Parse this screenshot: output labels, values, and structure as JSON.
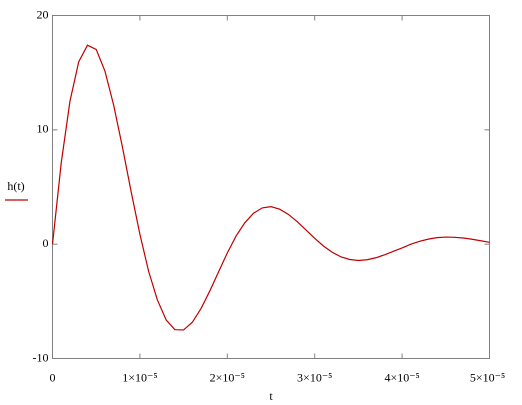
{
  "chart_data": {
    "type": "line",
    "x_label": "t",
    "x": [
      0,
      1e-06,
      2e-06,
      3e-06,
      4e-06,
      5e-06,
      6e-06,
      7e-06,
      8e-06,
      9e-06,
      1e-05,
      1.1e-05,
      1.2e-05,
      1.3e-05,
      1.4e-05,
      1.5e-05,
      1.6e-05,
      1.7e-05,
      1.8e-05,
      1.9e-05,
      2e-05,
      2.1e-05,
      2.2e-05,
      2.3e-05,
      2.4e-05,
      2.5e-05,
      2.6e-05,
      2.7e-05,
      2.8e-05,
      2.9e-05,
      3e-05,
      3.1e-05,
      3.2e-05,
      3.3e-05,
      3.4e-05,
      3.5e-05,
      3.6e-05,
      3.7e-05,
      3.8e-05,
      3.9e-05,
      4e-05,
      4.1e-05,
      4.2e-05,
      4.3e-05,
      4.4e-05,
      4.5e-05,
      4.6e-05,
      4.7e-05,
      4.8e-05,
      4.9e-05,
      5e-05
    ],
    "series": [
      {
        "name": "h(t)",
        "color": "#c00000",
        "values": [
          0,
          7.12,
          12.51,
          15.95,
          17.4,
          17.03,
          15.14,
          12.15,
          8.5,
          4.58,
          0.87,
          -2.38,
          -4.88,
          -6.62,
          -7.48,
          -7.5,
          -6.83,
          -5.62,
          -4.09,
          -2.42,
          -0.77,
          0.71,
          1.87,
          2.71,
          3.17,
          3.28,
          3.06,
          2.6,
          1.97,
          1.25,
          0.51,
          -0.16,
          -0.71,
          -1.11,
          -1.34,
          -1.43,
          -1.36,
          -1.19,
          -0.93,
          -0.63,
          -0.33,
          0,
          0.25,
          0.44,
          0.57,
          0.62,
          0.6,
          0.54,
          0.43,
          0.3,
          0.16
        ]
      }
    ],
    "xlim": [
      0,
      5e-05
    ],
    "xticks": [
      0,
      {
        "value": 1e-05,
        "label": "1×10⁻⁵"
      },
      {
        "value": 2e-05,
        "label": "2×10⁻⁵"
      },
      {
        "value": 3e-05,
        "label": "3×10⁻⁵"
      },
      {
        "value": 4e-05,
        "label": "4×10⁻⁵"
      },
      {
        "value": 5e-05,
        "label": "5×10⁻⁵"
      }
    ],
    "ylim": [
      -10,
      20
    ],
    "yticks": [
      -10,
      0,
      10,
      20
    ]
  }
}
